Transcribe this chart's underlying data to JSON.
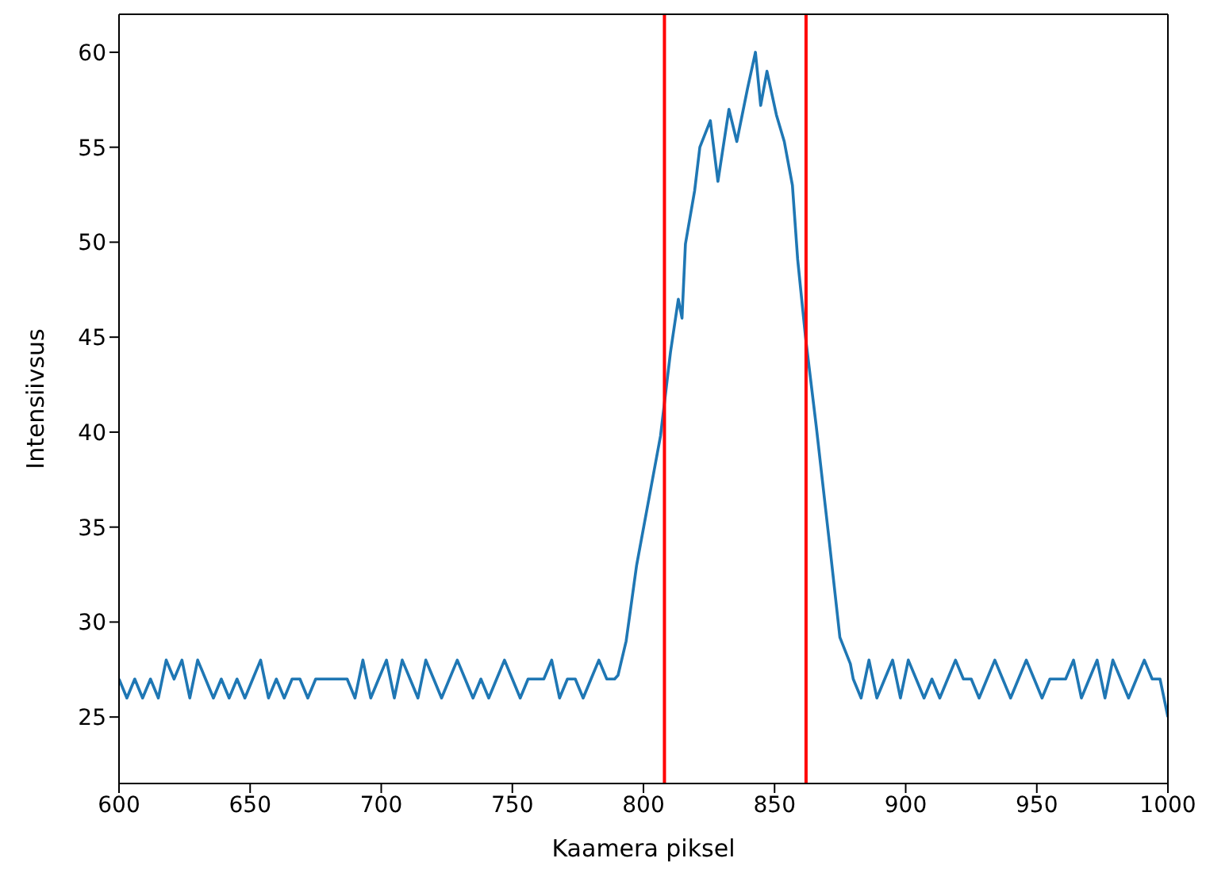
{
  "chart_data": {
    "type": "line",
    "xlabel": "Kaamera piksel",
    "ylabel": "Intensiivsus",
    "x": [
      600,
      603,
      606,
      609,
      612,
      615,
      618,
      621,
      624,
      627,
      630,
      633,
      636,
      639,
      642,
      645,
      648,
      651,
      654,
      657,
      660,
      663,
      666,
      669,
      672,
      675,
      678,
      681,
      684,
      687,
      690,
      693,
      696,
      699,
      702,
      705,
      708,
      711,
      714,
      717,
      720,
      723,
      726,
      729,
      732,
      735,
      738,
      741,
      744,
      747,
      750,
      753,
      756,
      759,
      762,
      765,
      768,
      771,
      774,
      777,
      780,
      783,
      786,
      789,
      790.3,
      793.4,
      797.4,
      806.5,
      810.3,
      813.3,
      814.7,
      816,
      819.5,
      821.5,
      825.5,
      828.4,
      832.6,
      835.6,
      839.7,
      842.7,
      844.7,
      847.1,
      850.7,
      853.7,
      856.8,
      858.8,
      861.8,
      865.9,
      870.9,
      874.9,
      878.9,
      880,
      883,
      886,
      889,
      892,
      895,
      898,
      901,
      904,
      907,
      910,
      913,
      916,
      919,
      922,
      925,
      928,
      931,
      934,
      937,
      940,
      943,
      946,
      949,
      952,
      955,
      958,
      961,
      964,
      967,
      970,
      973,
      976,
      979,
      982,
      985,
      988,
      991,
      994,
      997,
      1000
    ],
    "series": [
      {
        "color": "#1f77b4",
        "values": [
          27,
          26,
          27,
          26,
          27,
          26,
          28,
          27,
          28,
          26,
          28,
          27,
          26,
          27,
          26,
          27,
          26,
          27,
          28,
          26,
          27,
          26,
          27,
          27,
          26,
          27,
          27,
          27,
          27,
          27,
          26,
          28,
          26,
          27,
          28,
          26,
          28,
          27,
          26,
          28,
          27,
          26,
          27,
          28,
          27,
          26,
          27,
          26,
          27,
          28,
          27,
          26,
          27,
          27,
          27,
          28,
          26,
          27,
          27,
          26,
          27,
          28,
          27,
          27,
          27.2,
          29,
          33,
          39.8,
          44.2,
          47,
          46,
          49.9,
          52.7,
          55,
          56.4,
          53.2,
          57,
          55.3,
          58.1,
          60,
          57.2,
          59,
          56.7,
          55.3,
          53,
          49.1,
          45,
          40.3,
          34.2,
          29.2,
          27.8,
          27,
          26,
          28,
          26,
          27,
          28,
          26,
          28,
          27,
          26,
          27,
          26,
          27,
          28,
          27,
          27,
          26,
          27,
          28,
          27,
          26,
          27,
          28,
          27,
          26,
          27,
          27,
          27,
          28,
          26,
          27,
          28,
          26,
          28,
          27,
          26,
          27,
          28,
          27,
          27,
          25
        ]
      }
    ],
    "xlim": [
      600,
      1000
    ],
    "xticks": [
      600,
      650,
      700,
      750,
      800,
      850,
      900,
      950,
      1000
    ],
    "ylim": [
      21.5,
      62
    ],
    "yticks": [
      25,
      30,
      35,
      40,
      45,
      50,
      55,
      60
    ],
    "ref_lines": [
      {
        "axis": "x",
        "value": 808,
        "color": "#ff0000"
      },
      {
        "axis": "x",
        "value": 862,
        "color": "#ff0000"
      }
    ]
  }
}
